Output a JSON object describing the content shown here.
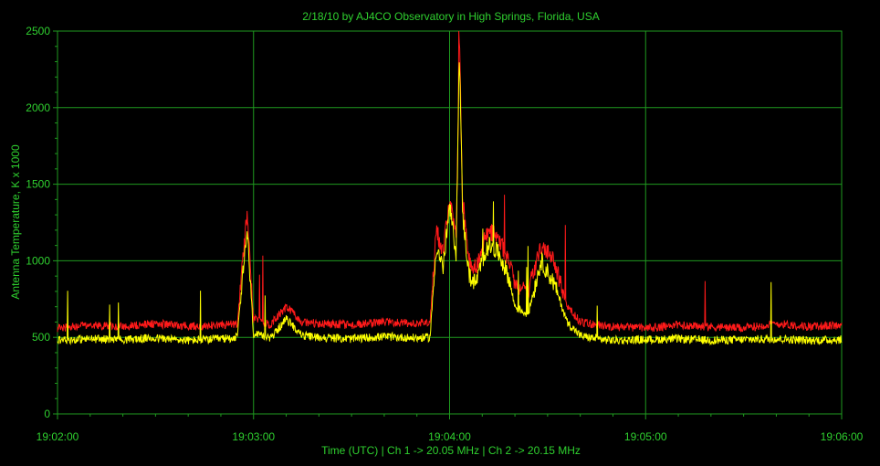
{
  "chart_data": {
    "type": "line",
    "title": "2/18/10  by  AJ4CO Observatory  in  High Springs, Florida, USA",
    "xlabel": "Time (UTC)  |  Ch 1 -> 20.05 MHz  |  Ch 2 -> 20.15 MHz",
    "ylabel": "Antenna Temperature, K x 1000",
    "ylim": [
      0,
      2500
    ],
    "xlim": [
      "19:02:00",
      "19:06:00"
    ],
    "x_ticks": [
      "19:02:00",
      "19:03:00",
      "19:04:00",
      "19:05:00",
      "19:06:00"
    ],
    "y_ticks": [
      0,
      500,
      1000,
      1500,
      2000,
      2500
    ],
    "grid": true,
    "colors": {
      "background": "#000000",
      "grid": "#1f9a1f",
      "text": "#2fd02f",
      "ch1": "#ff1a1a",
      "ch2": "#ffff00"
    },
    "series": [
      {
        "name": "Ch 1",
        "color": "#ff1a1a",
        "x": [
          "19:02:00",
          "19:02:10",
          "19:02:20",
          "19:02:30",
          "19:02:40",
          "19:02:50",
          "19:02:55",
          "19:02:58",
          "19:03:00",
          "19:03:05",
          "19:03:10",
          "19:03:15",
          "19:03:20",
          "19:03:30",
          "19:03:40",
          "19:03:50",
          "19:03:54",
          "19:03:56",
          "19:03:58",
          "19:04:00",
          "19:04:02",
          "19:04:03",
          "19:04:04",
          "19:04:06",
          "19:04:08",
          "19:04:10",
          "19:04:12",
          "19:04:15",
          "19:04:18",
          "19:04:20",
          "19:04:24",
          "19:04:28",
          "19:04:32",
          "19:04:36",
          "19:04:40",
          "19:04:45",
          "19:04:50",
          "19:05:00",
          "19:05:10",
          "19:05:20",
          "19:05:30",
          "19:05:40",
          "19:05:50",
          "19:06:00"
        ],
        "values": [
          560,
          580,
          570,
          590,
          575,
          580,
          590,
          1300,
          620,
          580,
          700,
          600,
          590,
          580,
          600,
          590,
          600,
          1200,
          1050,
          1400,
          1150,
          2450,
          1400,
          1000,
          950,
          1100,
          1200,
          1150,
          1000,
          850,
          800,
          1100,
          1000,
          700,
          600,
          580,
          570,
          560,
          580,
          570,
          560,
          590,
          570,
          580
        ]
      },
      {
        "name": "Ch 2",
        "color": "#ffff00",
        "x": [
          "19:02:00",
          "19:02:10",
          "19:02:20",
          "19:02:30",
          "19:02:40",
          "19:02:50",
          "19:02:55",
          "19:02:58",
          "19:03:00",
          "19:03:05",
          "19:03:10",
          "19:03:15",
          "19:03:20",
          "19:03:30",
          "19:03:40",
          "19:03:50",
          "19:03:54",
          "19:03:56",
          "19:03:58",
          "19:04:00",
          "19:04:02",
          "19:04:03",
          "19:04:04",
          "19:04:06",
          "19:04:08",
          "19:04:10",
          "19:04:12",
          "19:04:15",
          "19:04:18",
          "19:04:20",
          "19:04:24",
          "19:04:28",
          "19:04:32",
          "19:04:36",
          "19:04:40",
          "19:04:45",
          "19:04:50",
          "19:05:00",
          "19:05:10",
          "19:05:20",
          "19:05:30",
          "19:05:40",
          "19:05:50",
          "19:06:00"
        ],
        "values": [
          480,
          490,
          485,
          495,
          480,
          490,
          500,
          1200,
          520,
          490,
          620,
          510,
          500,
          490,
          505,
          495,
          500,
          1100,
          950,
          1350,
          1050,
          2400,
          1300,
          900,
          850,
          1000,
          1100,
          1050,
          900,
          700,
          650,
          1000,
          850,
          600,
          510,
          490,
          480,
          485,
          490,
          480,
          485,
          490,
          480,
          485
        ]
      }
    ]
  }
}
